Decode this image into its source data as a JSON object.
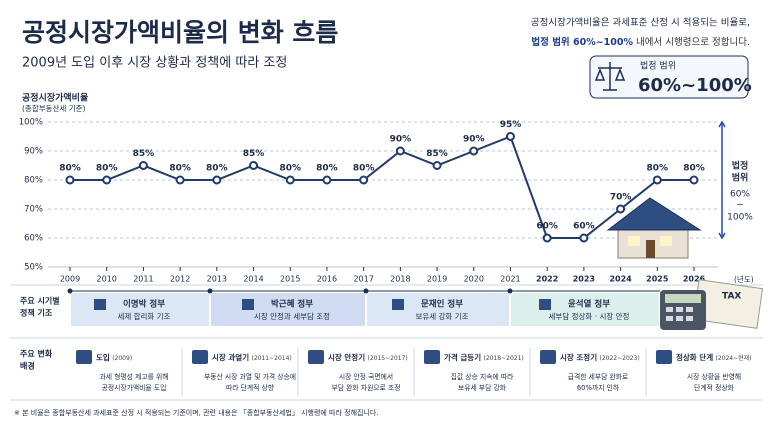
{
  "header": {
    "title": "공정시장가액비율의 변화 흐름",
    "subtitle": "2009년 도입 이후 시장 상황과 정책에 따라 조정",
    "note_line1": "공정시장가액비율은 과세표준 산정 시 적용되는 비율로,",
    "note_bold": "법정 범위 60%~100%",
    "note_rest": " 내에서 시행령으로 정합니다.",
    "box_label": "법정 범위",
    "box_value": "60%~100%"
  },
  "chart_data": {
    "type": "line",
    "y_label": "공정시장가액비율",
    "y_sublabel": "(종합부동산세 기준)",
    "x_unit": "(년도)",
    "categories": [
      "2009",
      "2010",
      "2011",
      "2012",
      "2013",
      "2014",
      "2015",
      "2016",
      "2017",
      "2018",
      "2019",
      "2020",
      "2021",
      "2022",
      "2023",
      "2024",
      "2025",
      "2026"
    ],
    "values": [
      80,
      80,
      85,
      80,
      80,
      85,
      80,
      80,
      80,
      90,
      85,
      90,
      95,
      60,
      60,
      70,
      80,
      80
    ],
    "value_labels": [
      "80%",
      "80%",
      "85%",
      "80%",
      "80%",
      "85%",
      "80%",
      "80%",
      "80%",
      "90%",
      "85%",
      "90%",
      "95%",
      "60%",
      "60%",
      "70%",
      "80%",
      "80%"
    ],
    "color": "#1f3a6b",
    "ylim": [
      50,
      100
    ],
    "yticks": [
      {
        "value": 50,
        "label": "50%"
      },
      {
        "value": 60,
        "label": "60%"
      },
      {
        "value": 70,
        "label": "70%"
      },
      {
        "value": 80,
        "label": "80%"
      },
      {
        "value": 90,
        "label": "90%"
      },
      {
        "value": 100,
        "label": "100%"
      }
    ],
    "grid": true,
    "range_annotation": {
      "lines": [
        "법정",
        "범위",
        "60%",
        "~",
        "100%"
      ],
      "from": 60,
      "to": 100
    }
  },
  "timeline": {
    "label": [
      "주요 시기별",
      "정책 기조"
    ],
    "periods": [
      {
        "name": "이명박 정부",
        "desc": "세제 합리화 기조"
      },
      {
        "name": "박근혜 정부",
        "desc": "시장 안정과 세부담 조정"
      },
      {
        "name": "문재인 정부",
        "desc": "보유세 강화 기조"
      },
      {
        "name": "윤석열 정부",
        "desc": "세부담 정상화 · 시장 안정"
      }
    ]
  },
  "events": {
    "label": [
      "주요 변화",
      "배경"
    ],
    "items": [
      {
        "title": "도입",
        "period": "(2009)",
        "lines": [
          "과세 형평성 제고를 위해",
          "공정시장가액비율 도입"
        ]
      },
      {
        "title": "시장 과열기",
        "period": "(2011~2014)",
        "lines": [
          "부동산 시장 과열 및 가격 상승에",
          "따라 단계적 상향"
        ]
      },
      {
        "title": "시장 안정기",
        "period": "(2015~2017)",
        "lines": [
          "시장 안정 국면에서",
          "부담 완화 차원으로 조정"
        ]
      },
      {
        "title": "가격 급등기",
        "period": "(2018~2021)",
        "lines": [
          "집값 상승 지속에 따라",
          "보유세 부담 강화"
        ]
      },
      {
        "title": "시장 조정기",
        "period": "(2022~2023)",
        "lines": [
          "급격한 세부담 완화로",
          "60%까지 인하"
        ]
      },
      {
        "title": "정상화 단계",
        "period": "(2024~현재)",
        "lines": [
          "시장 상황을 반영해",
          "단계적 정상화"
        ]
      }
    ]
  },
  "footnote": "※ 본 비율은 종합부동산세 과세표준 산정 시 적용되는 기준이며, 관련 내용은 「종합부동산세법」 시행령에 따라 정해집니다."
}
